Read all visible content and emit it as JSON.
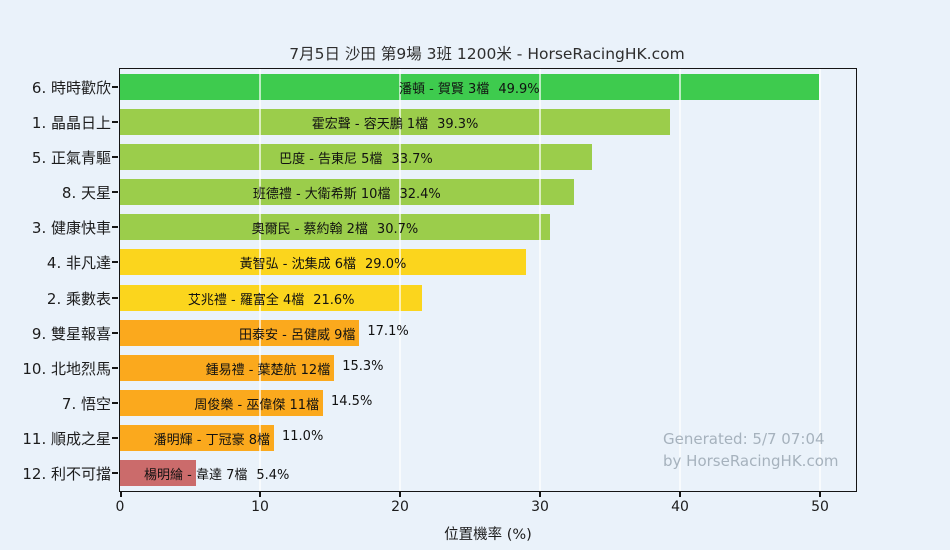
{
  "title": "7月5日 沙田 第9場 3班 1200米 - HorseRacingHK.com",
  "xaxis": {
    "label": "位置機率 (%)",
    "tick_labels": [
      "0",
      "10",
      "20",
      "30",
      "40",
      "50"
    ],
    "tick_values": [
      0,
      10,
      20,
      30,
      40,
      50
    ]
  },
  "watermark": {
    "line1": "Generated: 5/7 07:04",
    "line2": "by HorseRacingHK.com"
  },
  "colors": {
    "background": "#eaf2fa",
    "green": "#3ecb4e",
    "yellowgreen": "#9bcd4b",
    "yellow": "#fbd51d",
    "orange": "#fba91d",
    "red": "#cb6b6b"
  },
  "chart_data": {
    "type": "bar",
    "orientation": "horizontal",
    "title": "7月5日 沙田 第9場 3班 1200米 - HorseRacingHK.com",
    "xlabel": "位置機率 (%)",
    "ylabel": "",
    "xlim": [
      0,
      52.5
    ],
    "grid": true,
    "bars": [
      {
        "rank_label": "6. 時時歡欣",
        "bar_label": "潘頓 - 賀賢 3檔",
        "pct_label": "49.9%",
        "value": 49.9,
        "color_key": "green"
      },
      {
        "rank_label": "1. 晶晶日上",
        "bar_label": "霍宏聲 - 容天鵬 1檔",
        "pct_label": "39.3%",
        "value": 39.3,
        "color_key": "yellowgreen"
      },
      {
        "rank_label": "5. 正氣青驅",
        "bar_label": "巴度 - 告東尼 5檔",
        "pct_label": "33.7%",
        "value": 33.7,
        "color_key": "yellowgreen"
      },
      {
        "rank_label": "8. 天星",
        "bar_label": "班德禮 - 大衛希斯 10檔",
        "pct_label": "32.4%",
        "value": 32.4,
        "color_key": "yellowgreen"
      },
      {
        "rank_label": "3. 健康快車",
        "bar_label": "奧爾民 - 蔡約翰 2檔",
        "pct_label": "30.7%",
        "value": 30.7,
        "color_key": "yellowgreen"
      },
      {
        "rank_label": "4. 非凡達",
        "bar_label": "黃智弘 - 沈集成 6檔",
        "pct_label": "29.0%",
        "value": 29.0,
        "color_key": "yellow"
      },
      {
        "rank_label": "2. 乘數表",
        "bar_label": "艾兆禮 - 羅富全 4檔",
        "pct_label": "21.6%",
        "value": 21.6,
        "color_key": "yellow"
      },
      {
        "rank_label": "9. 雙星報喜",
        "bar_label": "田泰安 - 呂健威 9檔",
        "pct_label": "17.1%",
        "value": 17.1,
        "color_key": "orange"
      },
      {
        "rank_label": "10. 北地烈馬",
        "bar_label": "鍾易禮 - 葉楚航 12檔",
        "pct_label": "15.3%",
        "value": 15.3,
        "color_key": "orange"
      },
      {
        "rank_label": "7. 悟空",
        "bar_label": "周俊樂 - 巫偉傑 11檔",
        "pct_label": "14.5%",
        "value": 14.5,
        "color_key": "orange"
      },
      {
        "rank_label": "11. 順成之星",
        "bar_label": "潘明輝 - 丁冠豪 8檔",
        "pct_label": "11.0%",
        "value": 11.0,
        "color_key": "orange"
      },
      {
        "rank_label": "12. 利不可擋",
        "bar_label": "楊明綸 - 韋達 7檔",
        "pct_label": "5.4%",
        "value": 5.4,
        "color_key": "red"
      }
    ]
  }
}
